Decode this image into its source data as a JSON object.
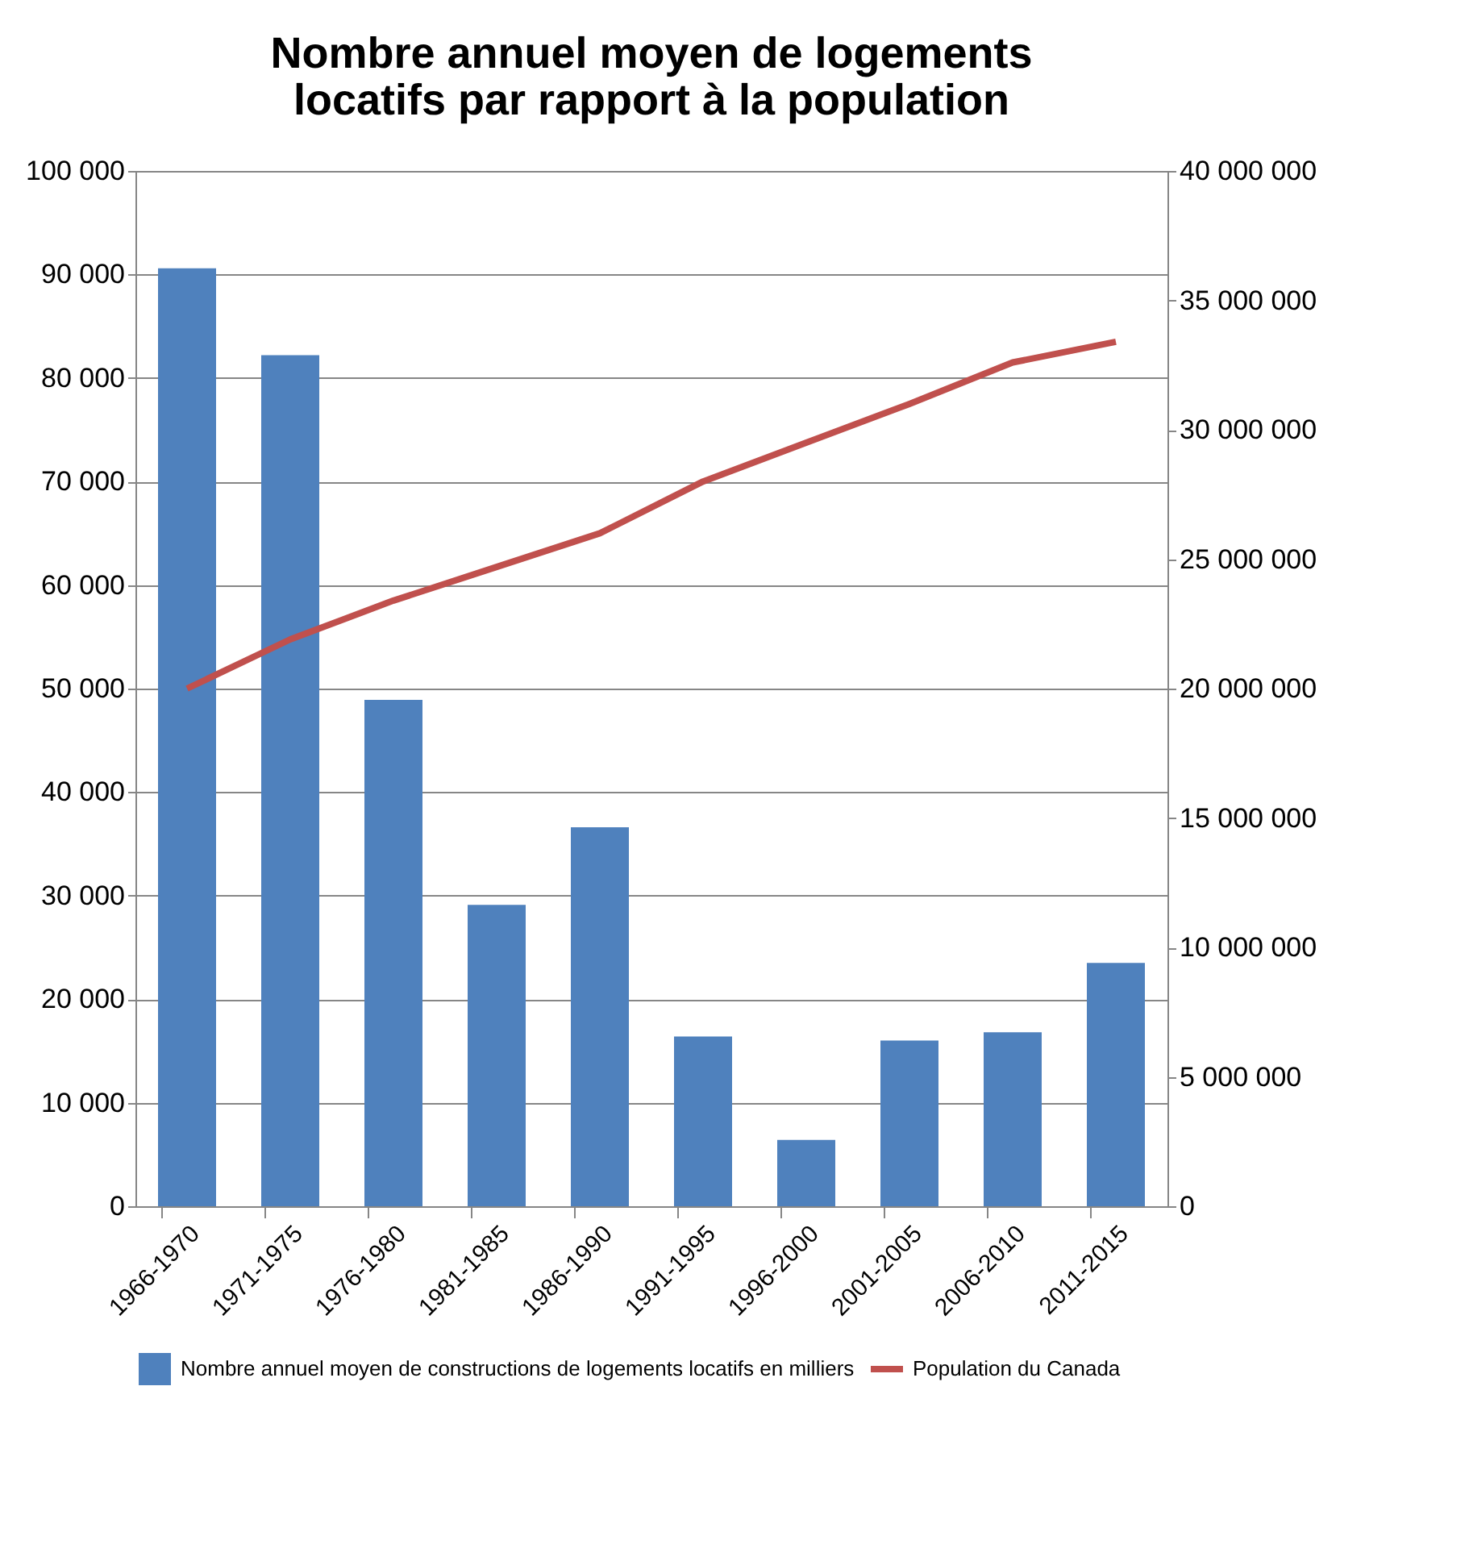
{
  "chart_data": {
    "type": "bar",
    "title": [
      "Nombre annuel moyen de logements",
      "locatifs par rapport à la population"
    ],
    "categories": [
      "1966-1970",
      "1971-1975",
      "1976-1980",
      "1981-1985",
      "1986-1990",
      "1991-1995",
      "1996-2000",
      "2001-2005",
      "2006-2010",
      "2011-2015"
    ],
    "series": [
      {
        "name": "Nombre annuel moyen de constructions de logements locatifs en milliers",
        "color": "#4f81bd",
        "values": [
          90600,
          82200,
          48900,
          29100,
          36600,
          16400,
          6400,
          16000,
          16800,
          23500
        ]
      },
      {
        "name": "Population du Canada",
        "color": "#c0504d",
        "type": "line",
        "axis": "y2",
        "values": [
          20000000,
          21900000,
          23400000,
          24700000,
          26000000,
          28000000,
          29500000,
          31000000,
          32600000,
          33400000
        ]
      }
    ],
    "ylim": [
      0,
      100000
    ],
    "yticks": [
      {
        "value": 0,
        "label": "0"
      },
      {
        "value": 10000,
        "label": "10 000"
      },
      {
        "value": 20000,
        "label": "20 000"
      },
      {
        "value": 30000,
        "label": "30 000"
      },
      {
        "value": 40000,
        "label": "40 000"
      },
      {
        "value": 50000,
        "label": "50 000"
      },
      {
        "value": 60000,
        "label": "60 000"
      },
      {
        "value": 70000,
        "label": "70 000"
      },
      {
        "value": 80000,
        "label": "80 000"
      },
      {
        "value": 90000,
        "label": "90 000"
      },
      {
        "value": 100000,
        "label": "100 000"
      }
    ],
    "y2lim": [
      0,
      40000000
    ],
    "y2ticks": [
      {
        "value": 0,
        "label": "0"
      },
      {
        "value": 5000000,
        "label": "5 000 000"
      },
      {
        "value": 10000000,
        "label": "10 000 000"
      },
      {
        "value": 15000000,
        "label": "15 000 000"
      },
      {
        "value": 20000000,
        "label": "20 000 000"
      },
      {
        "value": 25000000,
        "label": "25 000 000"
      },
      {
        "value": 30000000,
        "label": "30 000 000"
      },
      {
        "value": 35000000,
        "label": "35 000 000"
      },
      {
        "value": 40000000,
        "label": "40 000 000"
      }
    ],
    "grid": "y",
    "legend": "bottom",
    "marker": "none",
    "line_style": "solid"
  }
}
